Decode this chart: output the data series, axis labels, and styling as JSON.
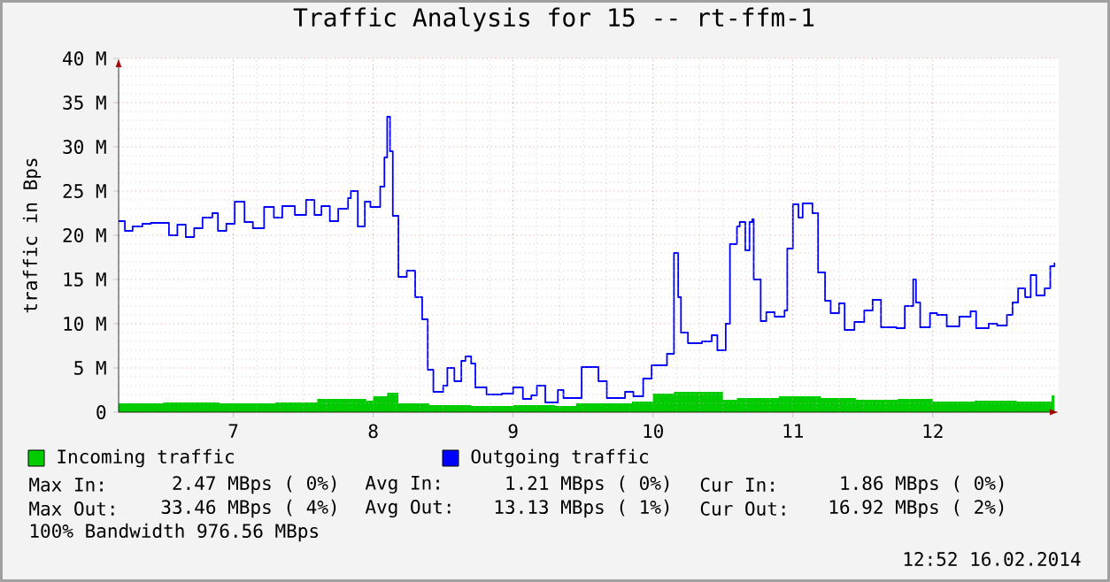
{
  "chart_data": {
    "type": "step",
    "title": "Traffic Analysis for 15 -- rt-ffm-1",
    "ylabel": "traffic in Bps",
    "xlim": [
      6.18,
      12.9
    ],
    "ylim": [
      0,
      40
    ],
    "xticks": [
      7,
      8,
      9,
      10,
      11,
      12
    ],
    "yticks": [
      {
        "value": 0,
        "label": "0"
      },
      {
        "value": 5,
        "label": "5 M"
      },
      {
        "value": 10,
        "label": "10 M"
      },
      {
        "value": 15,
        "label": "15 M"
      },
      {
        "value": 20,
        "label": "20 M"
      },
      {
        "value": 25,
        "label": "25 M"
      },
      {
        "value": 30,
        "label": "30 M"
      },
      {
        "value": 35,
        "label": "35 M"
      },
      {
        "value": 40,
        "label": "40 M"
      }
    ],
    "grid": true,
    "legend": "bottom",
    "series": [
      {
        "name": "Incoming traffic",
        "type": "area",
        "color": "#00cc00",
        "x": [
          6.18,
          6.5,
          6.9,
          7.3,
          7.6,
          7.95,
          8.0,
          8.1,
          8.18,
          8.4,
          8.7,
          9.0,
          9.3,
          9.45,
          9.85,
          10.0,
          10.15,
          10.5,
          10.6,
          10.9,
          11.2,
          11.45,
          11.75,
          12.0,
          12.3,
          12.6,
          12.85,
          12.87
        ],
        "values": [
          1.0,
          1.1,
          1.0,
          1.1,
          1.5,
          1.3,
          1.8,
          2.2,
          1.0,
          0.8,
          0.7,
          0.8,
          0.7,
          1.0,
          1.2,
          2.1,
          2.3,
          1.4,
          1.6,
          1.8,
          1.6,
          1.4,
          1.5,
          1.2,
          1.3,
          1.2,
          1.9,
          1.9
        ]
      },
      {
        "name": "Outgoing traffic",
        "color": "#0000ff",
        "x": [
          6.18,
          6.225,
          6.28,
          6.35,
          6.41,
          6.54,
          6.6,
          6.66,
          6.72,
          6.78,
          6.85,
          6.89,
          6.95,
          7.01,
          7.08,
          7.14,
          7.22,
          7.29,
          7.35,
          7.44,
          7.52,
          7.58,
          7.63,
          7.69,
          7.75,
          7.82,
          7.84,
          7.89,
          7.94,
          7.98,
          8.05,
          8.08,
          8.1,
          8.12,
          8.14,
          8.18,
          8.24,
          8.3,
          8.35,
          8.39,
          8.43,
          8.5,
          8.53,
          8.58,
          8.63,
          8.66,
          8.7,
          8.73,
          8.81,
          8.92,
          9.0,
          9.07,
          9.13,
          9.17,
          9.23,
          9.32,
          9.36,
          9.49,
          9.61,
          9.67,
          9.8,
          9.86,
          9.93,
          9.99,
          10.1,
          10.15,
          10.18,
          10.2,
          10.25,
          10.35,
          10.42,
          10.46,
          10.52,
          10.55,
          10.6,
          10.62,
          10.66,
          10.69,
          10.71,
          10.72,
          10.77,
          10.81,
          10.87,
          10.94,
          10.96,
          11.0,
          11.04,
          11.07,
          11.14,
          11.18,
          11.23,
          11.27,
          11.33,
          11.37,
          11.44,
          11.51,
          11.57,
          11.63,
          11.74,
          11.8,
          11.86,
          11.88,
          11.91,
          11.98,
          12.03,
          12.1,
          12.19,
          12.27,
          12.31,
          12.4,
          12.46,
          12.53,
          12.57,
          12.61,
          12.66,
          12.7,
          12.74,
          12.8,
          12.84,
          12.87
        ],
        "values": [
          21.6,
          20.5,
          21,
          21.3,
          21.4,
          20,
          21.2,
          19.8,
          20.8,
          22,
          22.5,
          20.5,
          21.3,
          23.8,
          21.5,
          20.8,
          23.2,
          22,
          23.3,
          22.3,
          24,
          22.3,
          23.3,
          21.6,
          23,
          24.2,
          25,
          21,
          23.8,
          23.2,
          25.5,
          28.8,
          33.4,
          29.5,
          22.2,
          15.3,
          16,
          13,
          10.5,
          4.8,
          2.3,
          3,
          5,
          3.5,
          5.8,
          6.3,
          5.5,
          2.8,
          2,
          2.1,
          2.8,
          1.5,
          1.9,
          3,
          1.1,
          2.5,
          1.6,
          5.1,
          3.5,
          1.6,
          2.3,
          1.8,
          3.8,
          5.3,
          6.6,
          18,
          13,
          9,
          7.8,
          8,
          8.7,
          7,
          10,
          19,
          21,
          21.5,
          18.3,
          21.5,
          21.8,
          15,
          10.3,
          11.3,
          10.8,
          11.5,
          18.5,
          23.5,
          22,
          23.6,
          22.5,
          15.8,
          12.6,
          11.2,
          12.3,
          9.3,
          10.2,
          11.5,
          12.7,
          9.6,
          9.5,
          12,
          15,
          12.4,
          9.6,
          11.2,
          11,
          9.7,
          10.8,
          11.4,
          9.5,
          10,
          9.8,
          11,
          12.4,
          14,
          13,
          15.5,
          13.2,
          14,
          16.5,
          16.9
        ]
      }
    ],
    "annotations": [
      "Max In:",
      "2.47 MBps ( 0%)",
      "Avg In:",
      "1.21 MBps ( 0%)",
      "Cur In:",
      "1.86 MBps ( 0%)",
      "Max Out:",
      "33.46 MBps ( 4%)",
      "Avg Out:",
      "13.13 MBps ( 1%)",
      "Cur Out:",
      "16.92 MBps ( 2%)",
      "100% Bandwidth 976.56 MBps",
      "12:52 16.02.2014"
    ]
  }
}
